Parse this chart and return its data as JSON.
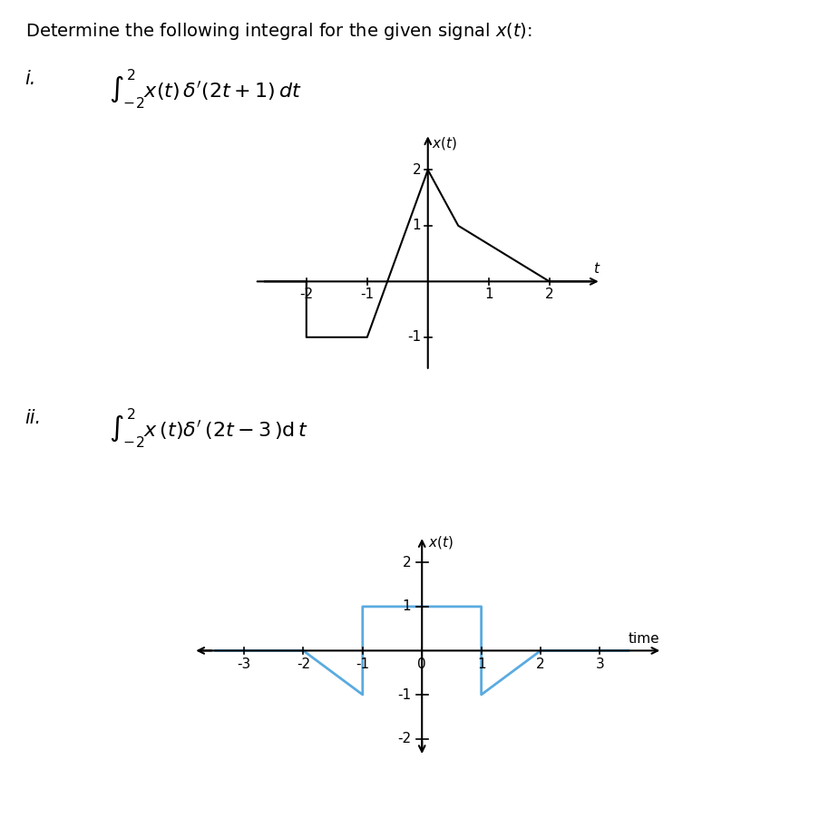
{
  "title_text": "Determine the following integral for the given signal x(t):",
  "label_i": "i.",
  "formula_i_display": "$\\int_{-2}^{2} x(t)\\,\\delta'(2t + 1)\\,dt$",
  "label_ii": "ii.",
  "formula_ii_display": "$\\int_{-2}^{2} x(t)\\,\\delta'(2t - 3)\\,dt$",
  "graph1": {
    "signal_x": [
      -2.7,
      -2.0,
      -2.0,
      -1.0,
      0.0,
      0.0,
      0.5,
      2.0,
      2.7
    ],
    "signal_y": [
      0.0,
      0.0,
      -1.0,
      -1.0,
      2.0,
      2.0,
      1.0,
      0.0,
      0.0
    ],
    "xlim": [
      -2.9,
      2.9
    ],
    "ylim": [
      -1.7,
      2.7
    ],
    "xticks": [
      -2,
      -1,
      1,
      2
    ],
    "ytick_neg1": -1,
    "ytick_1": 1,
    "ytick_2": 2,
    "color": "#000000",
    "linewidth": 1.5
  },
  "graph2": {
    "signal_x": [
      -3.5,
      -3.0,
      -2.0,
      -1.0,
      -1.0,
      1.0,
      1.0,
      2.0,
      3.0,
      3.5
    ],
    "signal_y": [
      0.0,
      0.0,
      0.0,
      -1.0,
      1.0,
      1.0,
      -1.0,
      0.0,
      0.0,
      0.0
    ],
    "xlim": [
      -4.0,
      4.2
    ],
    "ylim": [
      -2.5,
      2.7
    ],
    "xticks": [
      -3,
      -2,
      -1,
      0,
      1,
      2,
      3
    ],
    "ytick_neg2": -2,
    "ytick_neg1": -1,
    "ytick_1": 1,
    "ytick_2": 2,
    "color": "#5aabe0",
    "linewidth": 2.0
  },
  "bg_color": "#ffffff",
  "text_color": "#000000",
  "fontsize_title": 14,
  "fontsize_label": 14,
  "fontsize_formula": 15,
  "fontsize_tick": 11,
  "fontsize_axlabel": 11
}
